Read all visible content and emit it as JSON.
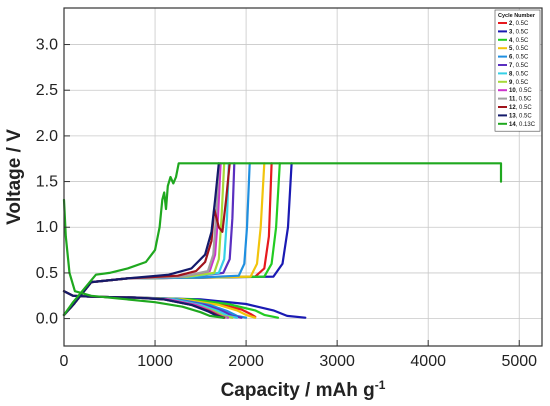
{
  "chart_data": {
    "type": "line",
    "xlabel": "Capacity / mAh g",
    "xlabel_superscript": "-1",
    "ylabel": "Voltage / V",
    "xlim": [
      0,
      5250
    ],
    "ylim": [
      -0.3,
      3.4
    ],
    "x_ticks": [
      "0",
      "1000",
      "2000",
      "3000",
      "4000",
      "5000"
    ],
    "y_ticks": [
      "0.0",
      "0.5",
      "1.0",
      "1.5",
      "2.0",
      "2.5",
      "3.0"
    ],
    "grid": true,
    "legend": {
      "title": "Cycle Number",
      "position": "top-right",
      "entries": [
        {
          "num": "2",
          "rate": ", 0.5C",
          "color": "#e6191e"
        },
        {
          "num": "3",
          "rate": ", 0.5C",
          "color": "#1a1ab3"
        },
        {
          "num": "4",
          "rate": ", 0.5C",
          "color": "#22cc22"
        },
        {
          "num": "5",
          "rate": ", 0.5C",
          "color": "#f2c40c"
        },
        {
          "num": "6",
          "rate": ", 0.5C",
          "color": "#1f8fe0"
        },
        {
          "num": "7",
          "rate": ", 0.5C",
          "color": "#5a2fc0"
        },
        {
          "num": "8",
          "rate": ", 0.5C",
          "color": "#36d0e6"
        },
        {
          "num": "9",
          "rate": ", 0.5C",
          "color": "#a6d93a"
        },
        {
          "num": "10",
          "rate": ", 0.5C",
          "color": "#cc33cc"
        },
        {
          "num": "11",
          "rate": ", 0.5C",
          "color": "#a0a0a0"
        },
        {
          "num": "12",
          "rate": ", 0.5C",
          "color": "#a0141c"
        },
        {
          "num": "13",
          "rate": ", 0.5C",
          "color": "#141a6b"
        },
        {
          "num": "14",
          "rate": ", 0.13C",
          "color": "#1fa81f"
        }
      ]
    },
    "series": [
      {
        "name": "2, 0.5C",
        "color": "#e6191e",
        "discharge": [
          [
            0,
            0.3
          ],
          [
            100,
            0.25
          ],
          [
            300,
            0.24
          ],
          [
            800,
            0.23
          ],
          [
            1300,
            0.21
          ],
          [
            1700,
            0.16
          ],
          [
            1950,
            0.1
          ],
          [
            2050,
            0.05
          ],
          [
            2100,
            0.02
          ]
        ],
        "charge": [
          [
            0,
            0.04
          ],
          [
            100,
            0.15
          ],
          [
            300,
            0.4
          ],
          [
            700,
            0.44
          ],
          [
            1600,
            0.45
          ],
          [
            2100,
            0.46
          ],
          [
            2200,
            0.55
          ],
          [
            2250,
            0.9
          ],
          [
            2280,
            1.7
          ]
        ]
      },
      {
        "name": "3, 0.5C",
        "color": "#1a1ab3",
        "discharge": [
          [
            0,
            0.3
          ],
          [
            100,
            0.25
          ],
          [
            300,
            0.24
          ],
          [
            800,
            0.23
          ],
          [
            1500,
            0.21
          ],
          [
            2000,
            0.16
          ],
          [
            2300,
            0.09
          ],
          [
            2450,
            0.03
          ],
          [
            2650,
            0.01
          ]
        ],
        "charge": [
          [
            0,
            0.04
          ],
          [
            100,
            0.15
          ],
          [
            300,
            0.4
          ],
          [
            700,
            0.44
          ],
          [
            1600,
            0.45
          ],
          [
            2300,
            0.46
          ],
          [
            2400,
            0.6
          ],
          [
            2460,
            1.0
          ],
          [
            2500,
            1.7
          ]
        ]
      },
      {
        "name": "4, 0.5C",
        "color": "#22cc22",
        "discharge": [
          [
            0,
            0.3
          ],
          [
            100,
            0.25
          ],
          [
            300,
            0.24
          ],
          [
            800,
            0.23
          ],
          [
            1400,
            0.21
          ],
          [
            1800,
            0.16
          ],
          [
            2100,
            0.09
          ],
          [
            2200,
            0.04
          ],
          [
            2350,
            0.01
          ]
        ],
        "charge": [
          [
            0,
            0.04
          ],
          [
            100,
            0.15
          ],
          [
            300,
            0.4
          ],
          [
            700,
            0.44
          ],
          [
            1500,
            0.45
          ],
          [
            2200,
            0.46
          ],
          [
            2280,
            0.6
          ],
          [
            2330,
            1.0
          ],
          [
            2370,
            1.7
          ]
        ]
      },
      {
        "name": "5, 0.5C",
        "color": "#f2c40c",
        "discharge": [
          [
            0,
            0.3
          ],
          [
            100,
            0.25
          ],
          [
            300,
            0.24
          ],
          [
            800,
            0.23
          ],
          [
            1300,
            0.21
          ],
          [
            1700,
            0.15
          ],
          [
            1900,
            0.09
          ],
          [
            2000,
            0.04
          ],
          [
            2100,
            0.01
          ]
        ],
        "charge": [
          [
            0,
            0.04
          ],
          [
            100,
            0.15
          ],
          [
            300,
            0.4
          ],
          [
            700,
            0.44
          ],
          [
            1500,
            0.45
          ],
          [
            2050,
            0.46
          ],
          [
            2120,
            0.6
          ],
          [
            2160,
            1.0
          ],
          [
            2200,
            1.7
          ]
        ]
      },
      {
        "name": "6, 0.5C",
        "color": "#1f8fe0",
        "discharge": [
          [
            0,
            0.3
          ],
          [
            100,
            0.25
          ],
          [
            300,
            0.24
          ],
          [
            800,
            0.23
          ],
          [
            1250,
            0.21
          ],
          [
            1600,
            0.15
          ],
          [
            1800,
            0.08
          ],
          [
            1900,
            0.03
          ],
          [
            2000,
            0.01
          ]
        ],
        "charge": [
          [
            0,
            0.04
          ],
          [
            100,
            0.15
          ],
          [
            300,
            0.4
          ],
          [
            700,
            0.44
          ],
          [
            1500,
            0.45
          ],
          [
            1920,
            0.47
          ],
          [
            1980,
            0.6
          ],
          [
            2010,
            1.0
          ],
          [
            2040,
            1.7
          ]
        ]
      },
      {
        "name": "7, 0.5C",
        "color": "#5a2fc0",
        "discharge": [
          [
            0,
            0.3
          ],
          [
            100,
            0.25
          ],
          [
            300,
            0.24
          ],
          [
            800,
            0.23
          ],
          [
            1200,
            0.21
          ],
          [
            1550,
            0.15
          ],
          [
            1750,
            0.08
          ],
          [
            1850,
            0.03
          ],
          [
            1950,
            0.01
          ]
        ],
        "charge": [
          [
            0,
            0.04
          ],
          [
            100,
            0.15
          ],
          [
            300,
            0.4
          ],
          [
            700,
            0.44
          ],
          [
            1400,
            0.46
          ],
          [
            1750,
            0.5
          ],
          [
            1820,
            0.65
          ],
          [
            1850,
            1.1
          ],
          [
            1870,
            1.7
          ]
        ]
      },
      {
        "name": "8, 0.5C",
        "color": "#36d0e6",
        "discharge": [
          [
            0,
            0.3
          ],
          [
            100,
            0.25
          ],
          [
            300,
            0.24
          ],
          [
            800,
            0.23
          ],
          [
            1200,
            0.21
          ],
          [
            1500,
            0.15
          ],
          [
            1700,
            0.08
          ],
          [
            1800,
            0.03
          ],
          [
            1900,
            0.01
          ]
        ],
        "charge": [
          [
            0,
            0.04
          ],
          [
            100,
            0.15
          ],
          [
            300,
            0.4
          ],
          [
            700,
            0.44
          ],
          [
            1400,
            0.46
          ],
          [
            1700,
            0.5
          ],
          [
            1760,
            0.65
          ],
          [
            1790,
            1.1
          ],
          [
            1810,
            1.7
          ]
        ]
      },
      {
        "name": "9, 0.5C",
        "color": "#a6d93a",
        "discharge": [
          [
            0,
            0.3
          ],
          [
            100,
            0.25
          ],
          [
            300,
            0.24
          ],
          [
            800,
            0.23
          ],
          [
            1150,
            0.21
          ],
          [
            1450,
            0.15
          ],
          [
            1650,
            0.08
          ],
          [
            1750,
            0.03
          ],
          [
            1850,
            0.01
          ]
        ],
        "charge": [
          [
            0,
            0.04
          ],
          [
            100,
            0.15
          ],
          [
            300,
            0.4
          ],
          [
            700,
            0.44
          ],
          [
            1350,
            0.46
          ],
          [
            1650,
            0.5
          ],
          [
            1700,
            0.65
          ],
          [
            1730,
            1.1
          ],
          [
            1760,
            1.7
          ]
        ]
      },
      {
        "name": "10, 0.5C",
        "color": "#cc33cc",
        "discharge": [
          [
            0,
            0.3
          ],
          [
            100,
            0.25
          ],
          [
            300,
            0.24
          ],
          [
            800,
            0.23
          ],
          [
            1150,
            0.21
          ],
          [
            1450,
            0.15
          ],
          [
            1620,
            0.08
          ],
          [
            1720,
            0.03
          ],
          [
            1800,
            0.01
          ]
        ],
        "charge": [
          [
            0,
            0.04
          ],
          [
            100,
            0.15
          ],
          [
            300,
            0.4
          ],
          [
            700,
            0.44
          ],
          [
            1300,
            0.46
          ],
          [
            1600,
            0.52
          ],
          [
            1660,
            0.7
          ],
          [
            1690,
            1.1
          ],
          [
            1720,
            1.7
          ]
        ]
      },
      {
        "name": "11, 0.5C",
        "color": "#a0a0a0",
        "discharge": [
          [
            0,
            0.3
          ],
          [
            100,
            0.25
          ],
          [
            300,
            0.24
          ],
          [
            800,
            0.23
          ],
          [
            1100,
            0.21
          ],
          [
            1400,
            0.15
          ],
          [
            1600,
            0.08
          ],
          [
            1700,
            0.03
          ],
          [
            1780,
            0.01
          ]
        ],
        "charge": [
          [
            0,
            0.04
          ],
          [
            100,
            0.15
          ],
          [
            300,
            0.4
          ],
          [
            700,
            0.44
          ],
          [
            1300,
            0.46
          ],
          [
            1580,
            0.52
          ],
          [
            1640,
            0.7
          ],
          [
            1670,
            1.1
          ],
          [
            1700,
            1.7
          ]
        ]
      },
      {
        "name": "12, 0.5C",
        "color": "#a0141c",
        "discharge": [
          [
            0,
            0.3
          ],
          [
            100,
            0.25
          ],
          [
            300,
            0.24
          ],
          [
            800,
            0.23
          ],
          [
            1100,
            0.21
          ],
          [
            1400,
            0.15
          ],
          [
            1600,
            0.08
          ],
          [
            1700,
            0.03
          ],
          [
            1760,
            0.01
          ]
        ],
        "charge": [
          [
            0,
            0.04
          ],
          [
            100,
            0.15
          ],
          [
            300,
            0.4
          ],
          [
            700,
            0.44
          ],
          [
            1250,
            0.47
          ],
          [
            1450,
            0.52
          ],
          [
            1550,
            0.62
          ],
          [
            1620,
            0.85
          ],
          [
            1650,
            1.2
          ],
          [
            1700,
            1.0
          ],
          [
            1740,
            0.95
          ],
          [
            1780,
            1.3
          ],
          [
            1820,
            1.7
          ]
        ]
      },
      {
        "name": "13, 0.5C",
        "color": "#141a6b",
        "discharge": [
          [
            0,
            0.3
          ],
          [
            100,
            0.25
          ],
          [
            300,
            0.24
          ],
          [
            800,
            0.23
          ],
          [
            1100,
            0.21
          ],
          [
            1400,
            0.15
          ],
          [
            1580,
            0.08
          ],
          [
            1680,
            0.03
          ],
          [
            1750,
            0.01
          ]
        ],
        "charge": [
          [
            0,
            0.04
          ],
          [
            100,
            0.15
          ],
          [
            300,
            0.4
          ],
          [
            700,
            0.44
          ],
          [
            1150,
            0.48
          ],
          [
            1400,
            0.55
          ],
          [
            1550,
            0.7
          ],
          [
            1620,
            0.95
          ],
          [
            1660,
            1.3
          ],
          [
            1700,
            1.7
          ]
        ]
      },
      {
        "name": "14, 0.13C",
        "color": "#1fa81f",
        "discharge": [
          [
            0,
            1.3
          ],
          [
            20,
            0.9
          ],
          [
            60,
            0.5
          ],
          [
            120,
            0.3
          ],
          [
            300,
            0.25
          ],
          [
            600,
            0.22
          ],
          [
            1000,
            0.18
          ],
          [
            1300,
            0.13
          ],
          [
            1500,
            0.07
          ],
          [
            1600,
            0.03
          ],
          [
            1750,
            0.01
          ]
        ],
        "charge": [
          [
            0,
            0.04
          ],
          [
            100,
            0.18
          ],
          [
            350,
            0.48
          ],
          [
            500,
            0.5
          ],
          [
            700,
            0.55
          ],
          [
            900,
            0.62
          ],
          [
            1000,
            0.75
          ],
          [
            1050,
            1.0
          ],
          [
            1080,
            1.3
          ],
          [
            1100,
            1.38
          ],
          [
            1120,
            1.2
          ],
          [
            1140,
            1.45
          ],
          [
            1170,
            1.55
          ],
          [
            1200,
            1.48
          ],
          [
            1230,
            1.55
          ],
          [
            1260,
            1.7
          ],
          [
            4800,
            1.7
          ],
          [
            4800,
            1.5
          ]
        ]
      }
    ]
  }
}
